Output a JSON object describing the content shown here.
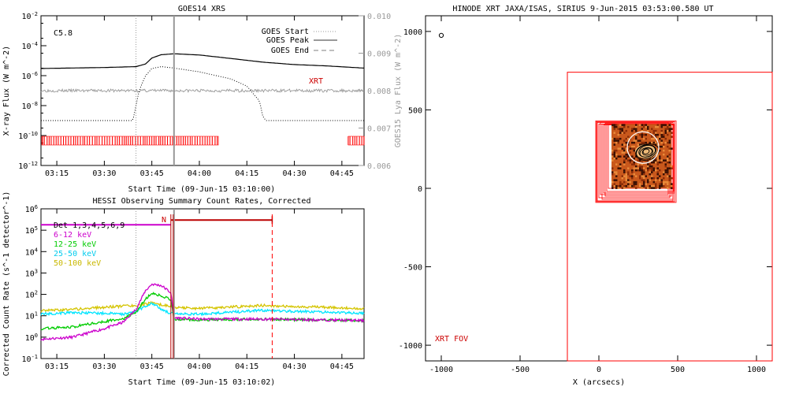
{
  "colors": {
    "black": "#000000",
    "gray": "#999999",
    "red": "#ff0000",
    "darkred": "#cc0000",
    "magenta": "#cc00cc",
    "green": "#00cc00",
    "cyan": "#00e5ff",
    "yellow": "#d4c400",
    "brown": "#bb0000",
    "sun_base": "#c9581c"
  },
  "chart_data": [
    {
      "id": "goes",
      "type": "line",
      "title": "GOES14 XRS",
      "xlabel": "Start Time (09-Jun-15 03:10:00)",
      "ylabel": "X-ray Flux (W m^-2)",
      "ylabel_right": "GOES15 Lya Flux (W m^-2)",
      "xlim": [
        "03:10",
        "04:52"
      ],
      "ylim": [
        1e-12,
        0.01
      ],
      "yscale": "log",
      "ylim_right": [
        0.006,
        0.01
      ],
      "x_ticks": [
        "03:15",
        "03:30",
        "03:45",
        "04:00",
        "04:15",
        "04:30",
        "04:45"
      ],
      "y_ticks": [
        "10^-12",
        "10^-10",
        "10^-8",
        "10^-6",
        "10^-4",
        "10^-2"
      ],
      "y_right_ticks": [
        "0.006",
        "0.007",
        "0.008",
        "0.009",
        "0.010"
      ],
      "flare_class": "C5.8",
      "xrt_label": "XRT",
      "legend": [
        "GOES Start",
        "GOES Peak",
        "GOES End"
      ],
      "legend_position": "top-right",
      "markers": {
        "goes_start": "03:40",
        "goes_peak": "03:52"
      },
      "series": [
        {
          "name": "long",
          "x": [
            "03:10",
            "03:30",
            "03:40",
            "03:43",
            "03:45",
            "03:48",
            "03:52",
            "04:00",
            "04:10",
            "04:20",
            "04:30",
            "04:40",
            "04:52"
          ],
          "y": [
            3e-06,
            3.5e-06,
            4e-06,
            6e-06,
            1.5e-05,
            2.5e-05,
            2.9e-05,
            2.4e-05,
            1.4e-05,
            8e-06,
            5.5e-06,
            4.5e-06,
            3.2e-06
          ]
        },
        {
          "name": "short",
          "x": [
            "03:10",
            "03:39",
            "03:40",
            "03:41",
            "03:43",
            "03:45",
            "03:48",
            "03:52",
            "04:00",
            "04:10",
            "04:15",
            "04:19",
            "04:20",
            "04:21",
            "04:52"
          ],
          "y": [
            1e-09,
            1e-09,
            1e-08,
            1e-07,
            1e-06,
            3e-06,
            4e-06,
            3.2e-06,
            1.8e-06,
            6e-07,
            2e-07,
            2e-08,
            2e-09,
            1e-09,
            1e-09
          ]
        },
        {
          "name": "lya",
          "x": [
            "03:10",
            "03:30",
            "04:00",
            "04:30",
            "04:52"
          ],
          "y": [
            0.008,
            0.008,
            0.008,
            0.008,
            0.008
          ]
        }
      ],
      "xrt_ranges": [
        [
          "03:10",
          "04:06"
        ],
        [
          "04:47",
          "04:52"
        ]
      ]
    },
    {
      "id": "hessi",
      "type": "line",
      "title": "HESSI Observing Summary Count Rates, Corrected",
      "xlabel": "Start Time (09-Jun-15 03:10:02)",
      "ylabel": "Corrected Count Rate (s^-1 detector^-1)",
      "xlim": [
        "03:10",
        "04:52"
      ],
      "ylim": [
        0.1,
        1000000.0
      ],
      "yscale": "log",
      "x_ticks": [
        "03:15",
        "03:30",
        "03:45",
        "04:00",
        "04:15",
        "04:30",
        "04:45"
      ],
      "y_ticks": [
        "10^-1",
        "10^0",
        "10^1",
        "10^2",
        "10^3",
        "10^4",
        "10^5",
        "10^6"
      ],
      "legend": [
        "Det 1,3,4,5,6,9",
        "6-12 keV",
        "12-25 keV",
        "25-50 keV",
        "50-100 keV"
      ],
      "legend_position": "top-left",
      "n_label": "N",
      "markers": {
        "start": "03:40",
        "peak": "03:52",
        "end": "04:23"
      },
      "bars": [
        {
          "name": "magenta-bar",
          "from": "03:10",
          "to": "03:51",
          "y": 180000.0
        },
        {
          "name": "red-bar",
          "from": "03:51",
          "to": "04:23",
          "y": 300000.0
        }
      ],
      "series": [
        {
          "name": "6-12 keV",
          "x": [
            "03:10",
            "03:20",
            "03:30",
            "03:36",
            "03:40",
            "03:43",
            "03:45",
            "03:48",
            "03:51",
            "03:52",
            "04:00",
            "04:20",
            "04:52"
          ],
          "y": [
            0.8,
            1.0,
            2.5,
            5,
            20,
            150,
            300,
            260,
            120,
            8,
            7,
            7,
            6
          ]
        },
        {
          "name": "12-25 keV",
          "x": [
            "03:10",
            "03:20",
            "03:30",
            "03:36",
            "03:40",
            "03:43",
            "03:45",
            "03:48",
            "03:51",
            "03:52",
            "04:00",
            "04:20",
            "04:52"
          ],
          "y": [
            2.5,
            3.0,
            5.5,
            7,
            15,
            60,
            110,
            90,
            55,
            7,
            6.5,
            7,
            6
          ]
        },
        {
          "name": "25-50 keV",
          "x": [
            "03:10",
            "03:20",
            "03:30",
            "03:36",
            "03:40",
            "03:43",
            "03:45",
            "03:48",
            "03:51",
            "03:52",
            "04:00",
            "04:20",
            "04:52"
          ],
          "y": [
            12,
            14,
            13,
            12,
            16,
            28,
            40,
            20,
            13,
            12,
            12,
            18,
            13
          ]
        },
        {
          "name": "50-100 keV",
          "x": [
            "03:10",
            "03:20",
            "03:30",
            "03:36",
            "03:40",
            "03:43",
            "03:45",
            "03:48",
            "03:51",
            "03:52",
            "04:00",
            "04:20",
            "04:52"
          ],
          "y": [
            17,
            20,
            25,
            28,
            30,
            35,
            40,
            32,
            28,
            25,
            22,
            30,
            22
          ]
        }
      ]
    },
    {
      "id": "hinode",
      "type": "scatter",
      "title": "HINODE XRT JAXA/ISAS, SIRIUS  9-Jun-2015 03:53:00.580 UT",
      "xlabel": "X (arcsecs)",
      "ylabel": "",
      "xlim": [
        -1100,
        1100
      ],
      "ylim": [
        -1100,
        1100
      ],
      "x_ticks": [
        "-1000",
        "-500",
        "0",
        "500",
        "1000"
      ],
      "y_ticks": [
        "-1000",
        "-500",
        "0",
        "500",
        "1000"
      ],
      "fov_label": "XRT FOV",
      "circle_marker": {
        "x": -1000,
        "y": 975
      },
      "fov": {
        "x0": -200,
        "x1": 1100,
        "y0": -1100,
        "y1": 740
      },
      "frame_boxes": [
        [
          -20,
          490,
          -90,
          430
        ],
        [
          -15,
          480,
          -85,
          425
        ],
        [
          -10,
          470,
          -80,
          420
        ],
        [
          0,
          450,
          -60,
          410
        ],
        [
          10,
          440,
          -40,
          420
        ],
        [
          20,
          470,
          -70,
          410
        ],
        [
          30,
          480,
          -30,
          405
        ],
        [
          40,
          460,
          -50,
          415
        ],
        [
          50,
          475,
          -20,
          410
        ],
        [
          60,
          480,
          0,
          405
        ]
      ],
      "image_box": [
        80,
        460,
        0,
        410
      ],
      "sun_circle": {
        "x": 280,
        "y": 260,
        "r": 100
      },
      "contour_center": {
        "x": 300,
        "y": 235
      }
    }
  ]
}
